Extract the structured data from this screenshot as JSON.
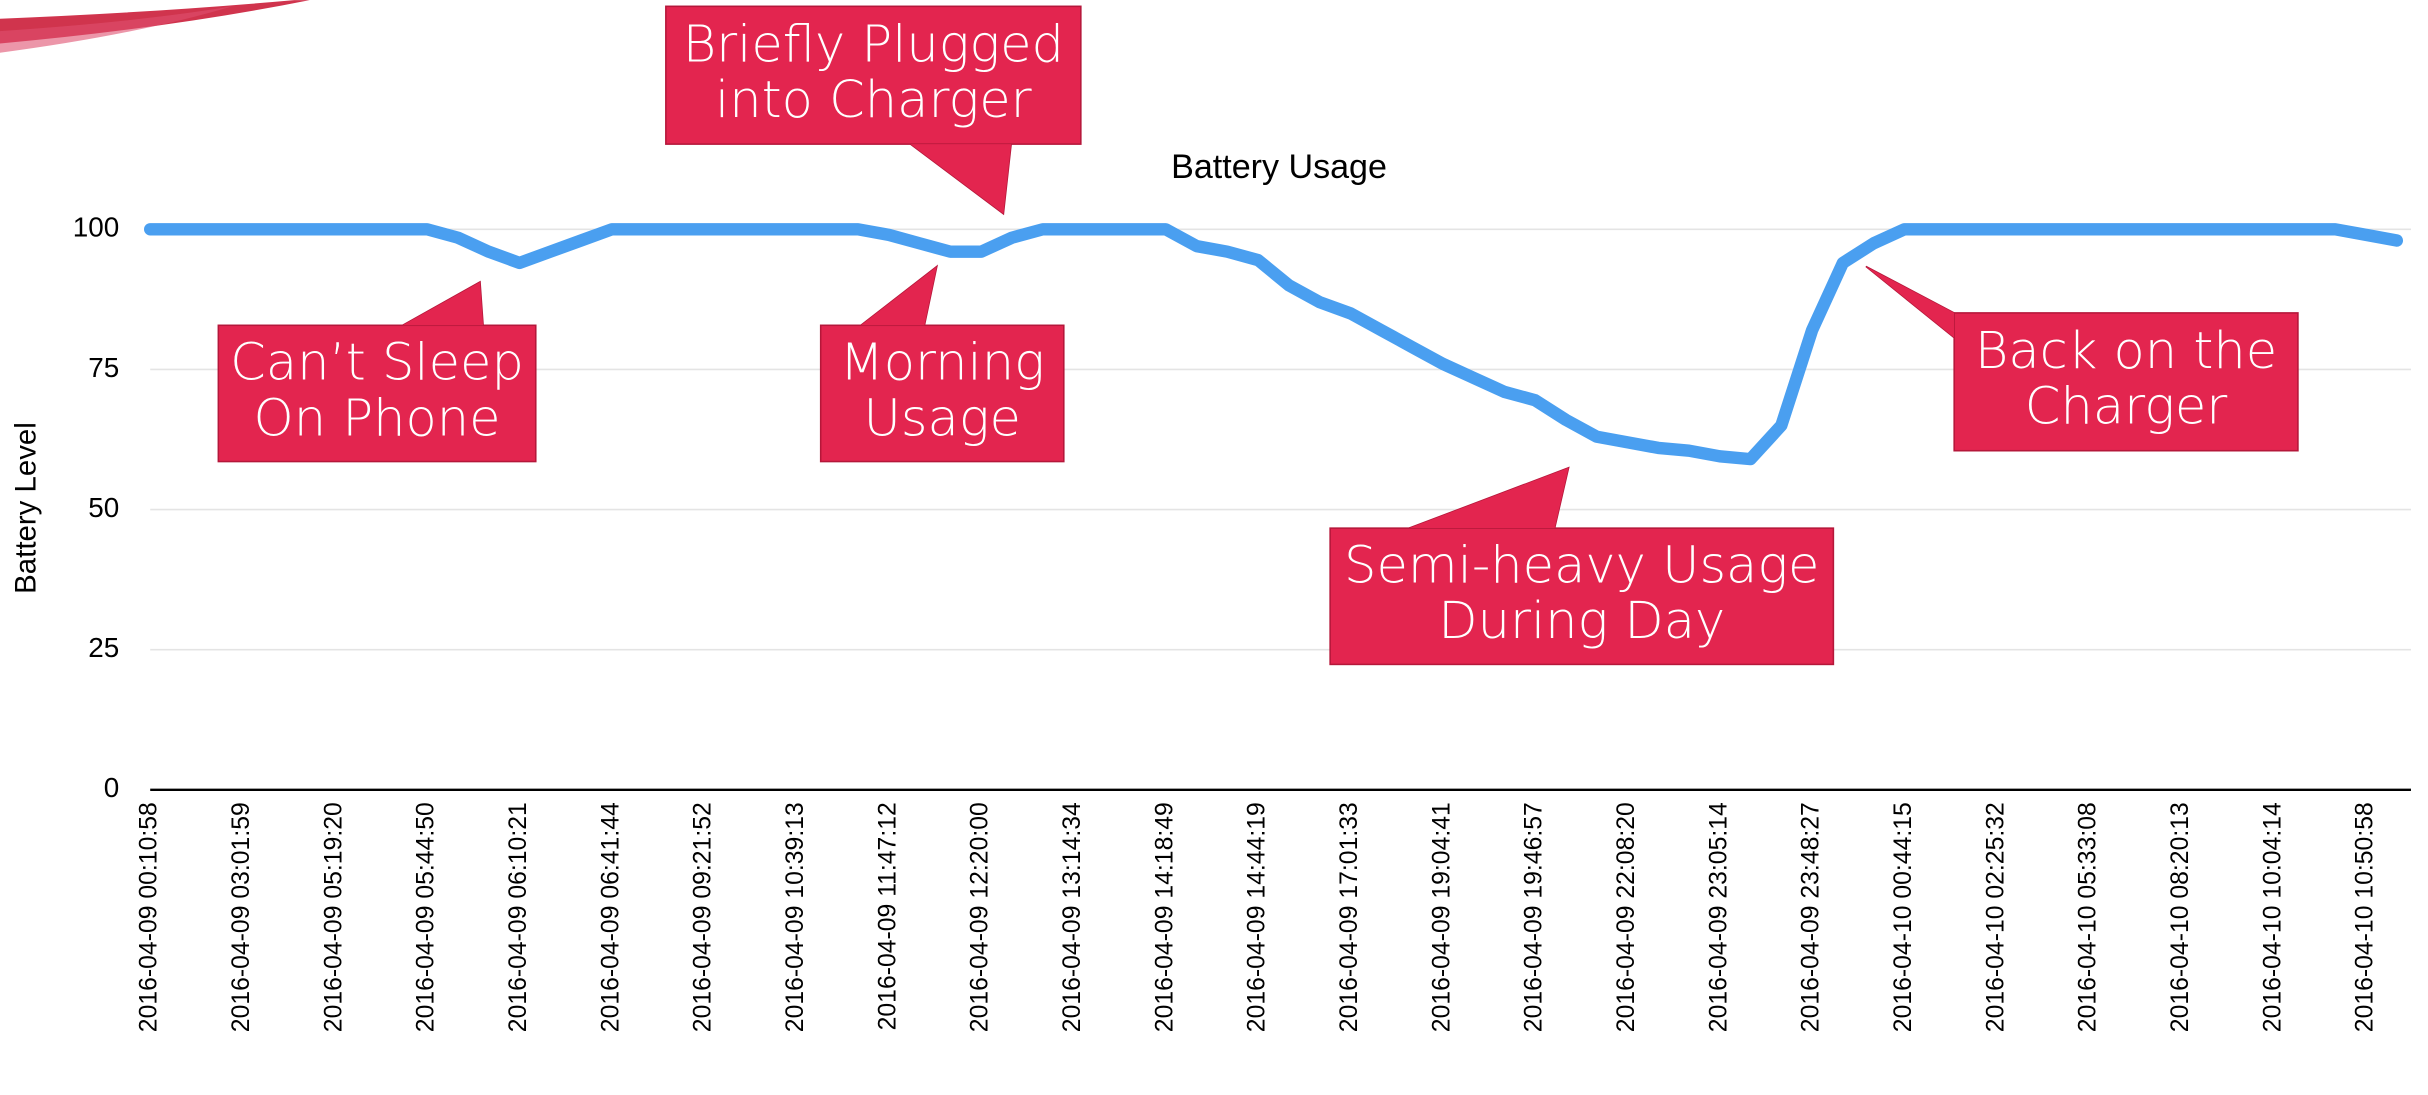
{
  "chart_data": {
    "type": "line",
    "title": "Battery Usage",
    "y_label": "Battery Level",
    "categories": [
      "2016-04-09 00:10:58",
      null,
      null,
      "2016-04-09 03:01:59",
      null,
      null,
      "2016-04-09 05:19:20",
      null,
      null,
      "2016-04-09 05:44:50",
      null,
      null,
      "2016-04-09 06:10:21",
      null,
      null,
      "2016-04-09 06:41:44",
      null,
      null,
      "2016-04-09 09:21:52",
      null,
      null,
      "2016-04-09 10:39:13",
      null,
      null,
      "2016-04-09 11:47:12",
      null,
      null,
      "2016-04-09 12:20:00",
      null,
      null,
      "2016-04-09 13:14:34",
      null,
      null,
      "2016-04-09 14:18:49",
      null,
      null,
      "2016-04-09 14:44:19",
      null,
      null,
      "2016-04-09 17:01:33",
      null,
      null,
      "2016-04-09 19:04:41",
      null,
      null,
      "2016-04-09 19:46:57",
      null,
      null,
      "2016-04-09 22:08:20",
      null,
      null,
      "2016-04-09 23:05:14",
      null,
      null,
      "2016-04-09 23:48:27",
      null,
      null,
      "2016-04-10 00:44:15",
      null,
      null,
      "2016-04-10 02:25:32",
      null,
      null,
      "2016-04-10 05:33:08",
      null,
      null,
      "2016-04-10 08:20:13",
      null,
      null,
      "2016-04-10 10:04:14",
      null,
      null,
      "2016-04-10 10:50:58",
      null
    ],
    "series": [
      {
        "name": "Battery Level",
        "color": "#4a9ff0",
        "values": [
          100,
          100,
          100,
          100,
          100,
          100,
          100,
          100,
          100,
          100,
          98.5,
          96,
          94,
          96,
          98,
          100,
          100,
          100,
          100,
          100,
          100,
          100,
          100,
          100,
          99,
          97.5,
          96,
          96,
          98.5,
          100,
          100,
          100,
          100,
          100,
          97,
          96,
          94.5,
          90,
          87,
          85,
          82,
          79,
          76,
          73.5,
          71,
          69.5,
          66,
          63,
          62,
          61,
          60.5,
          59.5,
          59,
          65,
          82,
          94,
          97.5,
          100,
          100,
          100,
          100,
          100,
          100,
          100,
          100,
          100,
          100,
          100,
          100,
          100,
          100,
          100,
          99,
          98
        ]
      }
    ],
    "ylim": [
      0,
      100
    ],
    "yticks": [
      0,
      25,
      50,
      75,
      100
    ],
    "grid": true,
    "annotations": [
      {
        "lines": [
          "Briefly Plugged",
          "into Charger"
        ]
      },
      {
        "lines": [
          "Can’t Sleep",
          "On Phone"
        ]
      },
      {
        "lines": [
          "Morning",
          "Usage"
        ]
      },
      {
        "lines": [
          "Semi-heavy Usage",
          "During Day"
        ]
      },
      {
        "lines": [
          "Back on the",
          "Charger"
        ]
      }
    ]
  }
}
